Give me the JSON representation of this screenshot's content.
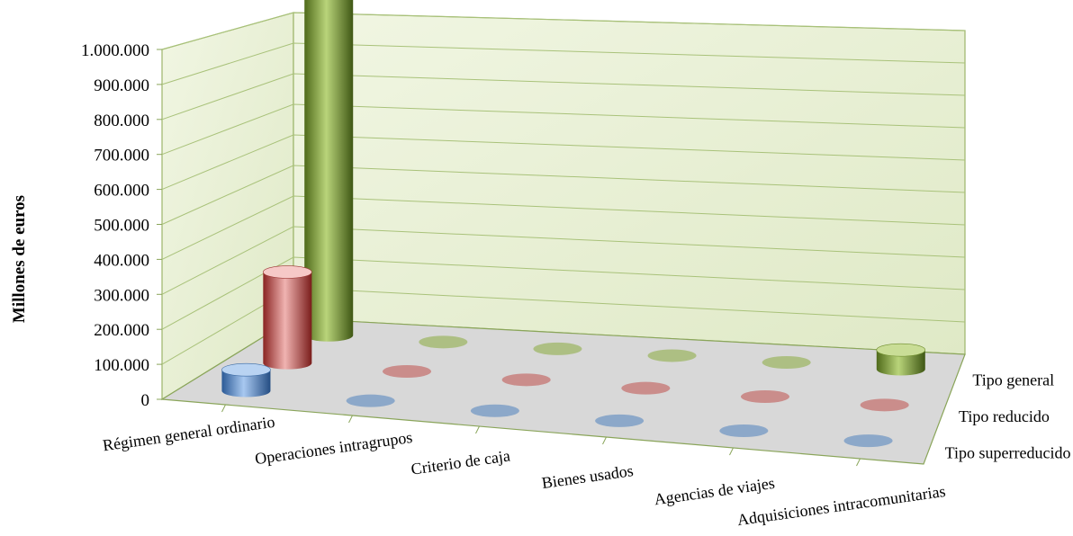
{
  "chart_data": {
    "type": "bar",
    "subtype": "3d-cylinder",
    "ylabel": "Millones de euros",
    "ylim": [
      0,
      1000000
    ],
    "yticks": [
      "0",
      "100.000",
      "200.000",
      "300.000",
      "400.000",
      "500.000",
      "600.000",
      "700.000",
      "800.000",
      "900.000",
      "1.000.000"
    ],
    "categories": [
      "Régimen general ordinario",
      "Operaciones intragrupos",
      "Criterio de caja",
      "Bienes usados",
      "Agencias de viajes",
      "Adquisiciones intracomunitarias"
    ],
    "series": [
      {
        "name": "Tipo general",
        "values": [
          990000,
          0,
          0,
          0,
          0,
          55000
        ]
      },
      {
        "name": "Tipo reducido",
        "values": [
          260000,
          0,
          0,
          0,
          0,
          0
        ]
      },
      {
        "name": "Tipo superreducido",
        "values": [
          60000,
          0,
          0,
          0,
          0,
          0
        ]
      }
    ],
    "colors": {
      "Tipo general": "#8aac3e",
      "Tipo reducido": "#c0504d",
      "Tipo superreducido": "#4f81bd"
    },
    "back_wall_color": "#e8f1d4",
    "floor_color": "#d8d8d8",
    "grid": true
  }
}
